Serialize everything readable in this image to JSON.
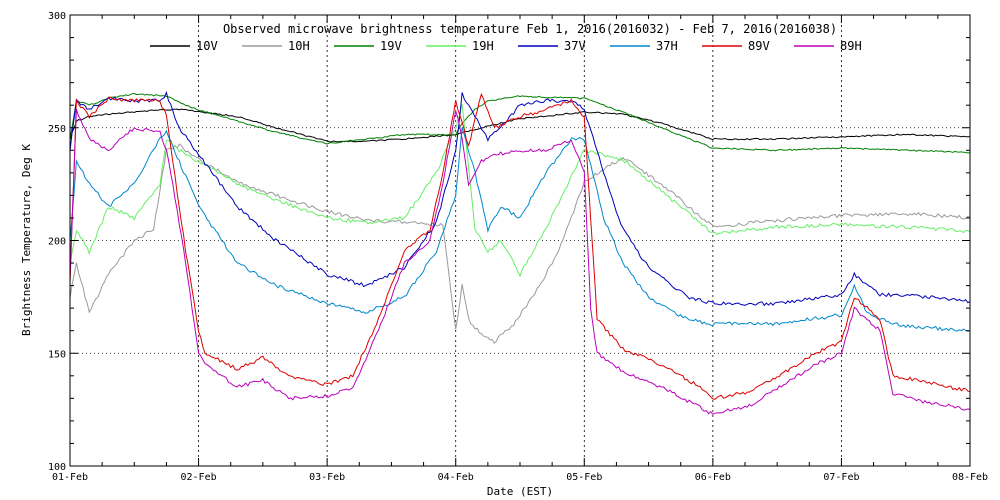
{
  "chart_data": {
    "type": "line",
    "title": "Observed microwave brightness temperature Feb  1, 2016(2016032) - Feb  7, 2016(2016038)",
    "xlabel": "Date (EST)",
    "ylabel": "Brightness Temperature, Deg K",
    "ylim": [
      100,
      300
    ],
    "xlim": [
      0,
      7
    ],
    "yticks": [
      100,
      150,
      200,
      250,
      300
    ],
    "xticks": [
      {
        "day": 0,
        "label": "01-Feb"
      },
      {
        "day": 1,
        "label": "02-Feb"
      },
      {
        "day": 2,
        "label": "03-Feb"
      },
      {
        "day": 3,
        "label": "04-Feb"
      },
      {
        "day": 4,
        "label": "05-Feb"
      },
      {
        "day": 5,
        "label": "06-Feb"
      },
      {
        "day": 6,
        "label": "07-Feb"
      },
      {
        "day": 7,
        "label": "08-Feb"
      }
    ],
    "grid": "dotted",
    "legend_position": "top",
    "series": [
      {
        "name": "10V",
        "color": "#000000",
        "x": [
          0,
          0.05,
          0.15,
          0.3,
          0.5,
          0.7,
          0.9,
          1.0,
          1.3,
          1.6,
          2.0,
          2.3,
          2.6,
          3.0,
          3.2,
          3.5,
          4.0,
          4.3,
          4.6,
          5.0,
          5.5,
          6.0,
          6.5,
          7.0
        ],
        "y": [
          245,
          253,
          255,
          256,
          257,
          258,
          258,
          257,
          255,
          250,
          244,
          244,
          245,
          247,
          250,
          254,
          257,
          256,
          252,
          245,
          245,
          246,
          247,
          246
        ]
      },
      {
        "name": "10H",
        "color": "#9a9a9a",
        "x": [
          0,
          0.05,
          0.15,
          0.3,
          0.5,
          0.65,
          0.75,
          0.85,
          1.0,
          1.3,
          1.6,
          2.0,
          2.3,
          2.6,
          2.9,
          3.0,
          3.05,
          3.1,
          3.2,
          3.3,
          3.45,
          3.6,
          3.8,
          4.0,
          4.3,
          4.6,
          5.0,
          5.5,
          6.0,
          6.5,
          7.0
        ],
        "y": [
          175,
          190,
          168,
          185,
          200,
          205,
          240,
          242,
          236,
          226,
          220,
          213,
          209,
          208,
          207,
          160,
          180,
          165,
          158,
          155,
          163,
          175,
          195,
          226,
          237,
          225,
          206,
          209,
          211,
          212,
          210
        ]
      },
      {
        "name": "19V",
        "color": "#008000",
        "x": [
          0,
          0.05,
          0.15,
          0.3,
          0.5,
          0.75,
          0.9,
          1.0,
          1.3,
          1.6,
          2.0,
          2.3,
          2.6,
          3.0,
          3.05,
          3.15,
          3.25,
          3.5,
          4.0,
          4.3,
          4.6,
          5.0,
          5.5,
          6.0,
          6.5,
          7.0
        ],
        "y": [
          245,
          262,
          260,
          263,
          265,
          264,
          260,
          258,
          253,
          248,
          243,
          245,
          247,
          247,
          252,
          258,
          262,
          264,
          263,
          257,
          250,
          241,
          240,
          241,
          240,
          239
        ]
      },
      {
        "name": "19H",
        "color": "#66ee66",
        "x": [
          0,
          0.05,
          0.15,
          0.3,
          0.5,
          0.7,
          0.75,
          0.85,
          1.0,
          1.3,
          1.6,
          2.0,
          2.3,
          2.6,
          2.85,
          3.0,
          3.05,
          3.15,
          3.25,
          3.35,
          3.5,
          3.7,
          4.0,
          4.3,
          4.6,
          5.0,
          5.5,
          6.0,
          6.5,
          7.0
        ],
        "y": [
          190,
          205,
          195,
          215,
          210,
          225,
          245,
          240,
          235,
          225,
          218,
          210,
          208,
          210,
          230,
          250,
          260,
          205,
          195,
          200,
          185,
          205,
          240,
          236,
          222,
          203,
          206,
          207,
          206,
          204
        ]
      },
      {
        "name": "37V",
        "color": "#0000bb",
        "x": [
          0,
          0.05,
          0.15,
          0.3,
          0.5,
          0.7,
          0.75,
          0.85,
          1.0,
          1.3,
          1.6,
          2.0,
          2.3,
          2.6,
          2.85,
          3.0,
          3.05,
          3.15,
          3.25,
          3.35,
          3.5,
          3.7,
          3.9,
          4.0,
          4.15,
          4.3,
          4.5,
          4.8,
          5.0,
          5.5,
          6.0,
          6.1,
          6.2,
          6.3,
          6.5,
          7.0
        ],
        "y": [
          240,
          262,
          258,
          263,
          262,
          262,
          265,
          250,
          238,
          215,
          200,
          185,
          180,
          188,
          208,
          240,
          265,
          255,
          245,
          250,
          260,
          262,
          262,
          258,
          230,
          205,
          188,
          175,
          172,
          172,
          176,
          185,
          180,
          176,
          176,
          173
        ]
      },
      {
        "name": "37H",
        "color": "#0088cc",
        "x": [
          0,
          0.05,
          0.15,
          0.3,
          0.5,
          0.7,
          0.75,
          0.85,
          1.0,
          1.3,
          1.6,
          2.0,
          2.3,
          2.6,
          2.85,
          3.0,
          3.05,
          3.15,
          3.25,
          3.35,
          3.5,
          3.7,
          3.9,
          4.0,
          4.15,
          4.3,
          4.5,
          4.8,
          5.0,
          5.5,
          6.0,
          6.1,
          6.2,
          6.3,
          6.5,
          7.0
        ],
        "y": [
          200,
          235,
          225,
          215,
          225,
          245,
          248,
          235,
          215,
          190,
          180,
          172,
          168,
          175,
          195,
          220,
          250,
          230,
          205,
          215,
          210,
          230,
          245,
          245,
          210,
          190,
          175,
          165,
          163,
          163,
          167,
          180,
          168,
          165,
          162,
          160
        ]
      },
      {
        "name": "89V",
        "color": "#dd0000",
        "x": [
          0,
          0.05,
          0.15,
          0.3,
          0.5,
          0.7,
          0.75,
          0.8,
          0.9,
          1.0,
          1.05,
          1.3,
          1.5,
          1.7,
          2.0,
          2.2,
          2.4,
          2.6,
          2.8,
          2.9,
          3.0,
          3.05,
          3.1,
          3.2,
          3.3,
          3.5,
          3.7,
          3.9,
          4.0,
          4.05,
          4.1,
          4.3,
          4.6,
          4.9,
          5.0,
          5.3,
          5.6,
          5.8,
          6.0,
          6.1,
          6.2,
          6.3,
          6.4,
          6.6,
          7.0
        ],
        "y": [
          180,
          262,
          255,
          263,
          262,
          262,
          255,
          235,
          195,
          160,
          150,
          143,
          148,
          140,
          136,
          140,
          165,
          195,
          205,
          230,
          262,
          252,
          242,
          265,
          250,
          255,
          258,
          262,
          255,
          210,
          165,
          152,
          145,
          135,
          130,
          133,
          143,
          150,
          155,
          175,
          170,
          165,
          140,
          138,
          133
        ]
      },
      {
        "name": "89H",
        "color": "#bb00bb",
        "x": [
          0,
          0.05,
          0.15,
          0.3,
          0.5,
          0.7,
          0.75,
          0.8,
          0.9,
          1.0,
          1.05,
          1.3,
          1.5,
          1.7,
          2.0,
          2.2,
          2.4,
          2.6,
          2.8,
          2.9,
          3.0,
          3.05,
          3.1,
          3.2,
          3.3,
          3.5,
          3.7,
          3.9,
          4.0,
          4.05,
          4.1,
          4.3,
          4.6,
          4.9,
          5.0,
          5.3,
          5.6,
          5.8,
          6.0,
          6.1,
          6.2,
          6.3,
          6.4,
          6.6,
          7.0
        ],
        "y": [
          185,
          258,
          245,
          240,
          250,
          248,
          240,
          225,
          190,
          150,
          145,
          135,
          138,
          130,
          131,
          135,
          160,
          190,
          200,
          225,
          258,
          245,
          225,
          235,
          238,
          240,
          240,
          245,
          230,
          170,
          150,
          142,
          135,
          126,
          123,
          127,
          138,
          145,
          150,
          170,
          165,
          160,
          132,
          129,
          125
        ]
      }
    ]
  }
}
